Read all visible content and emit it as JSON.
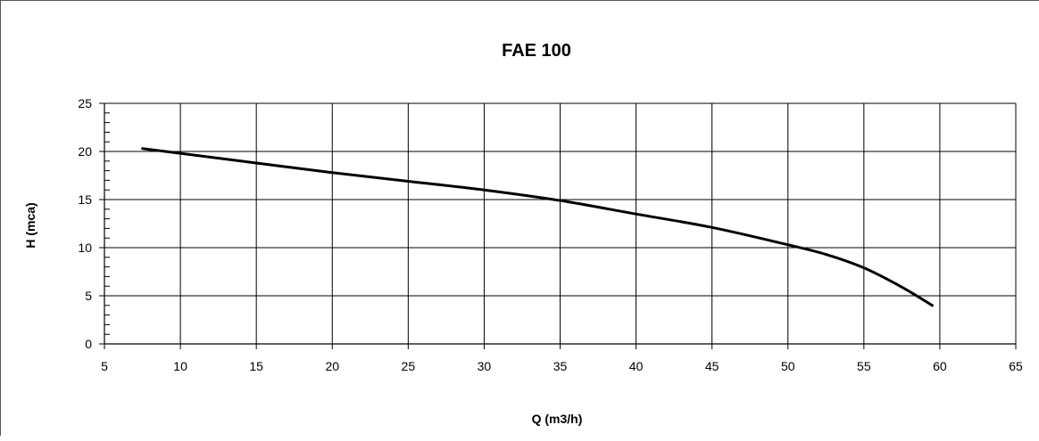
{
  "chart_data": {
    "type": "line",
    "title": "FAE 100",
    "xlabel": "Q (m3/h)",
    "ylabel": "H (mca)",
    "xlim": [
      5,
      65
    ],
    "ylim": [
      0,
      25
    ],
    "x_ticks": [
      5,
      10,
      15,
      20,
      25,
      30,
      35,
      40,
      45,
      50,
      55,
      60,
      65
    ],
    "y_ticks": [
      0,
      5,
      10,
      15,
      20,
      25
    ],
    "y_minor_step": 1,
    "grid": true,
    "series": [
      {
        "color": "#000000",
        "x": [
          7.5,
          10,
          15,
          20,
          25,
          30,
          35,
          40,
          45,
          50,
          52.5,
          55,
          57.5,
          59.5
        ],
        "y": [
          20.3,
          19.8,
          18.8,
          17.8,
          16.9,
          16.0,
          14.9,
          13.5,
          12.1,
          10.3,
          9.3,
          7.9,
          5.9,
          4.0
        ]
      }
    ]
  }
}
